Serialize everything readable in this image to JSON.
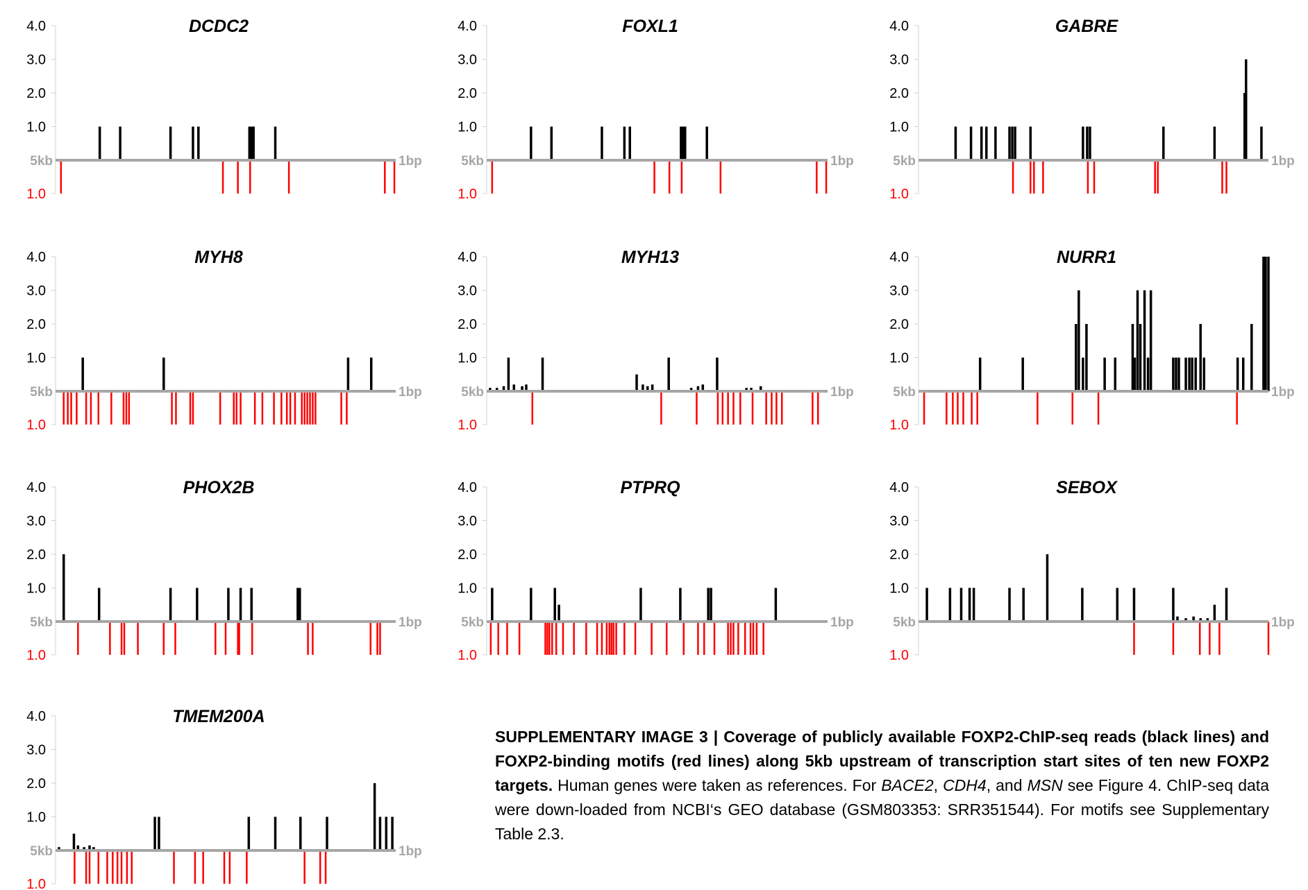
{
  "chart_data": [
    {
      "type": "bar",
      "title": "DCDC2",
      "ylim": [
        0,
        4
      ],
      "yticks": [
        "4.0",
        "3.0",
        "2.0",
        "1.0"
      ],
      "x_left_label": "5kb",
      "x_right_label": "1bp",
      "motif_axis_label": "1.0",
      "xlim": [
        0,
        5000
      ],
      "reads": [
        [
          650,
          1
        ],
        [
          950,
          1
        ],
        [
          1690,
          1
        ],
        [
          2020,
          1
        ],
        [
          2100,
          1
        ],
        [
          2850,
          1
        ],
        [
          2880,
          1
        ],
        [
          2910,
          1
        ],
        [
          3230,
          1
        ]
      ],
      "motifs": [
        80,
        2460,
        2680,
        2860,
        3430,
        4840,
        4980
      ]
    },
    {
      "type": "bar",
      "title": "FOXL1",
      "ylim": [
        0,
        4
      ],
      "yticks": [
        "4.0",
        "3.0",
        "2.0",
        "1.0"
      ],
      "x_left_label": "5kb",
      "x_right_label": "1bp",
      "motif_axis_label": "1.0",
      "xlim": [
        0,
        5000
      ],
      "reads": [
        [
          650,
          1
        ],
        [
          950,
          1
        ],
        [
          1690,
          1
        ],
        [
          2020,
          1
        ],
        [
          2100,
          1
        ],
        [
          2850,
          1
        ],
        [
          2880,
          1
        ],
        [
          2910,
          1
        ],
        [
          3230,
          1
        ]
      ],
      "motifs": [
        80,
        2460,
        2680,
        2860,
        3430,
        4840,
        4980
      ]
    },
    {
      "type": "bar",
      "title": "GABRE",
      "ylim": [
        0,
        4
      ],
      "yticks": [
        "4.0",
        "3.0",
        "2.0",
        "1.0"
      ],
      "x_left_label": "5kb",
      "x_right_label": "1bp",
      "motif_axis_label": "1.0",
      "xlim": [
        0,
        5000
      ],
      "reads": [
        [
          530,
          1
        ],
        [
          750,
          1
        ],
        [
          900,
          1
        ],
        [
          970,
          1
        ],
        [
          1100,
          1
        ],
        [
          1300,
          1
        ],
        [
          1340,
          1
        ],
        [
          1380,
          1
        ],
        [
          1600,
          1
        ],
        [
          2350,
          1
        ],
        [
          2410,
          1
        ],
        [
          2450,
          1
        ],
        [
          3500,
          1
        ],
        [
          4230,
          1
        ],
        [
          4660,
          2
        ],
        [
          4680,
          3
        ],
        [
          4900,
          1
        ]
      ],
      "motifs": [
        1350,
        1600,
        1650,
        1780,
        2420,
        2510,
        3380,
        3420,
        4340,
        4400
      ]
    },
    {
      "type": "bar",
      "title": "MYH8",
      "ylim": [
        0,
        4
      ],
      "yticks": [
        "4.0",
        "3.0",
        "2.0",
        "1.0"
      ],
      "x_left_label": "5kb",
      "x_right_label": "1bp",
      "motif_axis_label": "1.0",
      "xlim": [
        0,
        5000
      ],
      "reads": [
        [
          400,
          1
        ],
        [
          1590,
          1
        ],
        [
          4300,
          1
        ],
        [
          4640,
          1
        ]
      ],
      "motifs": [
        120,
        180,
        230,
        310,
        450,
        520,
        630,
        820,
        1000,
        1040,
        1080,
        1710,
        1770,
        1980,
        2020,
        2420,
        2620,
        2660,
        2720,
        2930,
        3040,
        3210,
        3320,
        3400,
        3450,
        3520,
        3620,
        3660,
        3700,
        3740,
        3780,
        3820,
        4200,
        4280
      ]
    },
    {
      "type": "bar",
      "title": "MYH13",
      "ylim": [
        0,
        4
      ],
      "yticks": [
        "4.0",
        "3.0",
        "2.0",
        "1.0"
      ],
      "x_left_label": "5kb",
      "x_right_label": "1bp",
      "motif_axis_label": "1.0",
      "xlim": [
        0,
        5000
      ],
      "reads": [
        [
          50,
          0.1
        ],
        [
          150,
          0.1
        ],
        [
          250,
          0.15
        ],
        [
          320,
          1
        ],
        [
          400,
          0.2
        ],
        [
          520,
          0.15
        ],
        [
          580,
          0.2
        ],
        [
          820,
          1
        ],
        [
          2200,
          0.5
        ],
        [
          2290,
          0.2
        ],
        [
          2360,
          0.15
        ],
        [
          2430,
          0.2
        ],
        [
          2670,
          1
        ],
        [
          3000,
          0.1
        ],
        [
          3100,
          0.15
        ],
        [
          3170,
          0.2
        ],
        [
          3380,
          1
        ],
        [
          3810,
          0.1
        ],
        [
          3880,
          0.1
        ],
        [
          4020,
          0.15
        ]
      ],
      "motifs": [
        670,
        2560,
        3080,
        3390,
        3460,
        3540,
        3620,
        3720,
        3900,
        4100,
        4180,
        4250,
        4330,
        4780,
        4860
      ]
    },
    {
      "type": "bar",
      "title": "NURR1",
      "ylim": [
        0,
        4
      ],
      "yticks": [
        "4.0",
        "3.0",
        "2.0",
        "1.0"
      ],
      "x_left_label": "5kb",
      "x_right_label": "1bp",
      "motif_axis_label": "1.0",
      "xlim": [
        0,
        5000
      ],
      "reads": [
        [
          880,
          1
        ],
        [
          1490,
          1
        ],
        [
          2250,
          2
        ],
        [
          2290,
          3
        ],
        [
          2350,
          1
        ],
        [
          2400,
          2
        ],
        [
          2660,
          1
        ],
        [
          2810,
          1
        ],
        [
          3060,
          2
        ],
        [
          3090,
          1
        ],
        [
          3130,
          3
        ],
        [
          3170,
          2
        ],
        [
          3230,
          3
        ],
        [
          3280,
          1
        ],
        [
          3320,
          3
        ],
        [
          3640,
          1
        ],
        [
          3680,
          1
        ],
        [
          3720,
          1
        ],
        [
          3820,
          1
        ],
        [
          3870,
          1
        ],
        [
          3910,
          1
        ],
        [
          3960,
          1
        ],
        [
          4030,
          2
        ],
        [
          4080,
          1
        ],
        [
          4560,
          1
        ],
        [
          4640,
          1
        ],
        [
          4760,
          2
        ],
        [
          4930,
          4
        ],
        [
          4960,
          4
        ],
        [
          5000,
          4
        ]
      ],
      "motifs": [
        80,
        400,
        490,
        560,
        640,
        760,
        840,
        1700,
        2200,
        2570,
        4550
      ]
    },
    {
      "type": "bar",
      "title": "PHOX2B",
      "ylim": [
        0,
        4
      ],
      "yticks": [
        "4.0",
        "3.0",
        "2.0",
        "1.0"
      ],
      "x_left_label": "5kb",
      "x_right_label": "1bp",
      "motif_axis_label": "1.0",
      "xlim": [
        0,
        5000
      ],
      "reads": [
        [
          120,
          2
        ],
        [
          640,
          1
        ],
        [
          1690,
          1
        ],
        [
          2080,
          1
        ],
        [
          2540,
          1
        ],
        [
          2720,
          1
        ],
        [
          2880,
          1
        ],
        [
          3560,
          1
        ],
        [
          3590,
          1
        ]
      ],
      "motifs": [
        330,
        800,
        970,
        1010,
        1210,
        1590,
        1760,
        2350,
        2500,
        2680,
        2700,
        2890,
        3710,
        3780,
        4630,
        4730,
        4770
      ]
    },
    {
      "type": "bar",
      "title": "PTPRQ",
      "ylim": [
        0,
        4
      ],
      "yticks": [
        "4.0",
        "3.0",
        "2.0",
        "1.0"
      ],
      "x_left_label": "5kb",
      "x_right_label": "1bp",
      "motif_axis_label": "1.0",
      "xlim": [
        0,
        5000
      ],
      "reads": [
        [
          80,
          1
        ],
        [
          650,
          1
        ],
        [
          1000,
          1
        ],
        [
          1060,
          0.5
        ],
        [
          2260,
          1
        ],
        [
          2840,
          1
        ],
        [
          3250,
          1
        ],
        [
          3290,
          1
        ],
        [
          4240,
          1
        ]
      ],
      "motifs": [
        60,
        170,
        300,
        480,
        860,
        890,
        920,
        960,
        1020,
        1120,
        1280,
        1460,
        1620,
        1690,
        1760,
        1800,
        1830,
        1860,
        1900,
        2020,
        2180,
        2420,
        2640,
        2890,
        3100,
        3190,
        3340,
        3540,
        3580,
        3620,
        3690,
        3790,
        3870,
        3910,
        3960,
        4060
      ]
    },
    {
      "type": "bar",
      "title": "SEBOX",
      "ylim": [
        0,
        4
      ],
      "yticks": [
        "4.0",
        "3.0",
        "2.0",
        "1.0"
      ],
      "x_left_label": "5kb",
      "x_right_label": "1bp",
      "motif_axis_label": "1.0",
      "xlim": [
        0,
        5000
      ],
      "reads": [
        [
          120,
          1
        ],
        [
          450,
          1
        ],
        [
          610,
          1
        ],
        [
          730,
          1
        ],
        [
          790,
          1
        ],
        [
          1300,
          1
        ],
        [
          1500,
          1
        ],
        [
          1840,
          2
        ],
        [
          2340,
          1
        ],
        [
          2840,
          1
        ],
        [
          3080,
          1
        ],
        [
          3640,
          1
        ],
        [
          3700,
          0.15
        ],
        [
          3820,
          0.1
        ],
        [
          3930,
          0.15
        ],
        [
          4030,
          0.1
        ],
        [
          4130,
          0.1
        ],
        [
          4230,
          0.5
        ],
        [
          4400,
          1
        ]
      ],
      "motifs": [
        3080,
        3640,
        4020,
        4160,
        4300,
        5000
      ]
    },
    {
      "type": "bar",
      "title": "TMEM200A",
      "ylim": [
        0,
        4
      ],
      "yticks": [
        "4.0",
        "3.0",
        "2.0",
        "1.0"
      ],
      "x_left_label": "5kb",
      "x_right_label": "1bp",
      "motif_axis_label": "1.0",
      "xlim": [
        0,
        5000
      ],
      "reads": [
        [
          50,
          0.1
        ],
        [
          270,
          0.5
        ],
        [
          330,
          0.15
        ],
        [
          420,
          0.1
        ],
        [
          500,
          0.15
        ],
        [
          560,
          0.1
        ],
        [
          1460,
          1
        ],
        [
          1520,
          1
        ],
        [
          2840,
          1
        ],
        [
          3230,
          1
        ],
        [
          3600,
          1
        ],
        [
          3990,
          1
        ],
        [
          4690,
          2
        ],
        [
          4770,
          1
        ],
        [
          4860,
          1
        ],
        [
          4950,
          1
        ]
      ],
      "motifs": [
        280,
        450,
        500,
        630,
        760,
        840,
        910,
        970,
        1050,
        1120,
        1740,
        2050,
        2170,
        2480,
        2560,
        2810,
        3660,
        3890,
        3970
      ]
    }
  ],
  "caption": {
    "bold_lead": "SUPPLEMENTARY IMAGE 3 | Coverage of publicly available FOXP2-ChIP-seq reads (black lines) and FOXP2-binding motifs (red lines) along 5kb upstream of transcription start sites of ten new FOXP2 targets.",
    "text_1": " Human genes were taken as references. For ",
    "gene_1": "BACE2",
    "sep_1": ", ",
    "gene_2": "CDH4",
    "sep_2": ", and ",
    "gene_3": "MSN",
    "text_2": " see Figure 4. ChIP-seq data were down-loaded from NCBI‘s GEO database (GSM803353: SRR351544). For motifs see Supplementary Table 2.3."
  },
  "colors": {
    "reads": "#000000",
    "motifs": "#ff0000",
    "axis": "#a6a6a6",
    "axis_label": "#a6a6a6",
    "motif_label": "#ff0000"
  }
}
